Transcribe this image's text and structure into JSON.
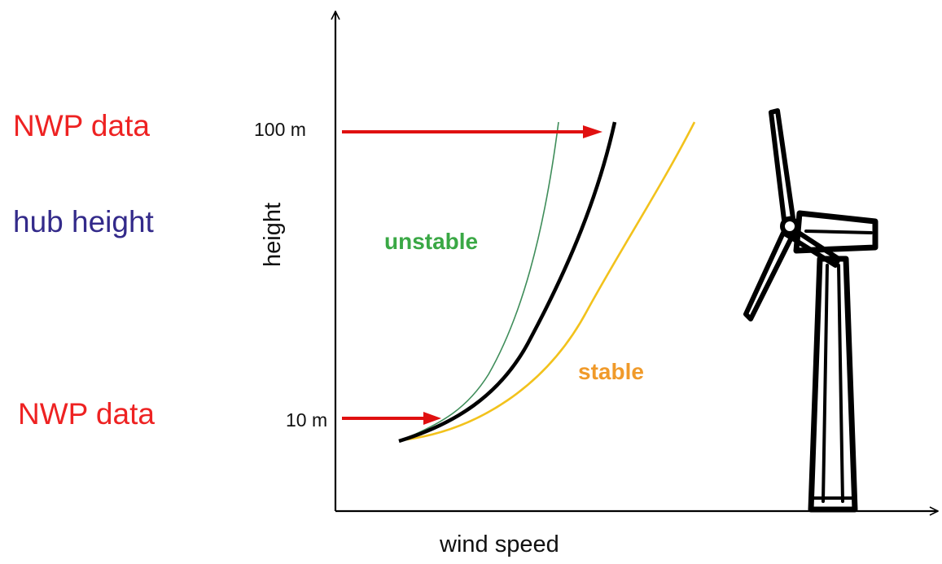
{
  "labels": {
    "nwp_upper": "NWP data",
    "hub_height": "hub height",
    "nwp_lower": "NWP data",
    "tick_100": "100 m",
    "tick_10": "10 m",
    "y_axis": "height",
    "x_axis": "wind speed",
    "unstable": "unstable",
    "stable": "stable"
  },
  "colors": {
    "nwp": "#ee2222",
    "hub": "#332a8a",
    "unstable": "#3aa845",
    "stable": "#f09a2a",
    "stable_line": "#f2c21c",
    "unstable_line": "#3f8d5a",
    "neutral_line": "#000000",
    "arrow": "#e01010",
    "axis": "#000000",
    "turbine": "#000000"
  }
}
